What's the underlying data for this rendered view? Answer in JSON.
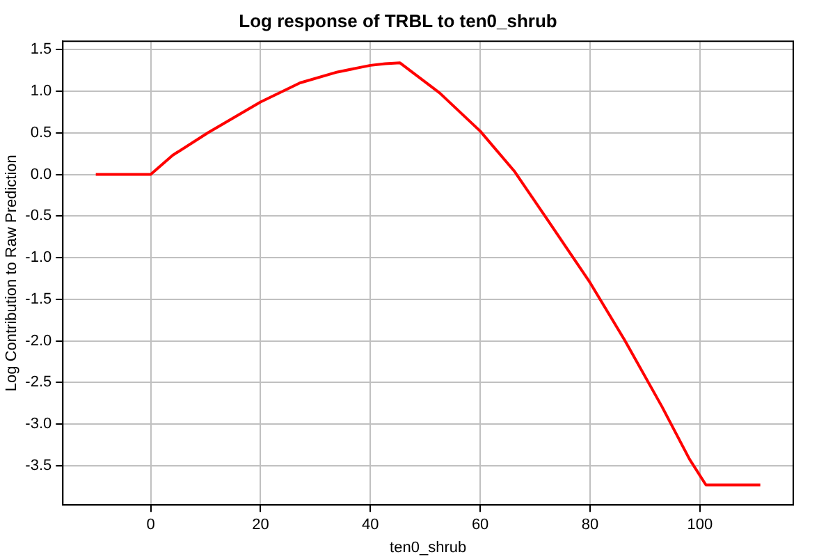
{
  "chart_data": {
    "type": "line",
    "title": "Log response of TRBL to ten0_shrub",
    "xlabel": "ten0_shrub",
    "ylabel": "Log Contribution to Raw Prediction",
    "x": [
      -10,
      0,
      4,
      10.4,
      20,
      27.2,
      34,
      40,
      42.7,
      45.4,
      52.6,
      60,
      66.2,
      72.1,
      80,
      86.3,
      93.1,
      98.1,
      101.1,
      111
    ],
    "series": [
      {
        "color": "#ff0000",
        "values": [
          0,
          0,
          0.23,
          0.5,
          0.87,
          1.1,
          1.23,
          1.31,
          1.33,
          1.34,
          0.98,
          0.52,
          0.04,
          -0.53,
          -1.3,
          -1.99,
          -2.79,
          -3.42,
          -3.73,
          -3.73
        ]
      }
    ],
    "xlim": [
      -16,
      117
    ],
    "xticks": [
      0,
      20,
      40,
      60,
      80,
      100
    ],
    "ylim": [
      -3.97,
      1.6
    ],
    "yticks": [
      {
        "value": -3.5,
        "label": "-3.5"
      },
      {
        "value": -3,
        "label": "-3.0"
      },
      {
        "value": -2.5,
        "label": "-2.5"
      },
      {
        "value": -2,
        "label": "-2.0"
      },
      {
        "value": -1.5,
        "label": "-1.5"
      },
      {
        "value": -1,
        "label": "-1.0"
      },
      {
        "value": -0.5,
        "label": "-0.5"
      },
      {
        "value": 0,
        "label": "0.0"
      },
      {
        "value": 0.5,
        "label": "0.5"
      },
      {
        "value": 1,
        "label": "1.0"
      },
      {
        "value": 1.5,
        "label": "1.5"
      }
    ],
    "grid": true,
    "legend": false,
    "marker": "none",
    "line_style": "solid"
  }
}
